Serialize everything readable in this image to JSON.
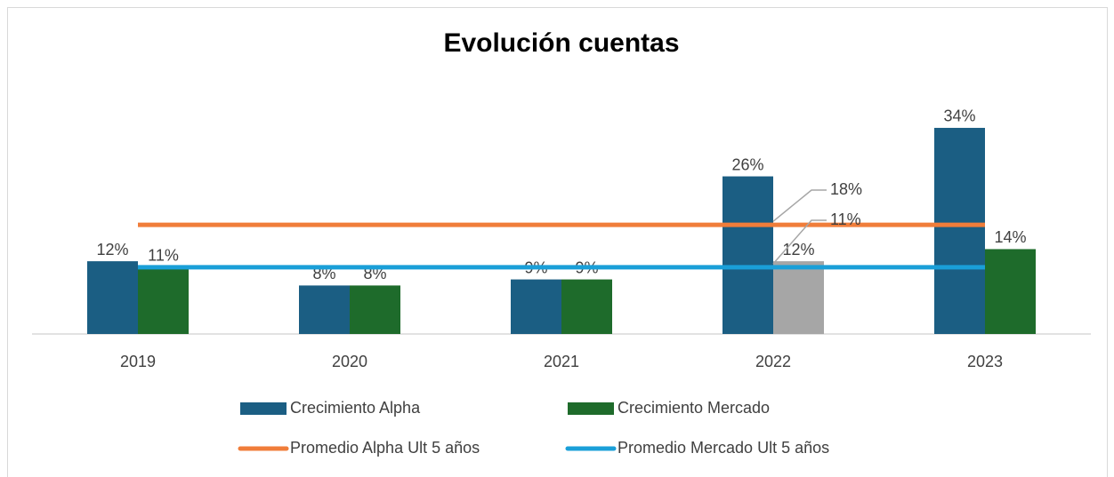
{
  "chart_data": {
    "type": "bar",
    "title": "Evolución cuentas",
    "categories": [
      "2019",
      "2020",
      "2021",
      "2022",
      "2023"
    ],
    "ylim": [
      0,
      40
    ],
    "series": [
      {
        "name": "Crecimiento Alpha",
        "type": "bar",
        "color": "#1b5e83",
        "values": [
          12,
          8,
          9,
          26,
          34
        ],
        "value_labels": [
          "12%",
          "8%",
          "9%",
          "26%",
          "34%"
        ]
      },
      {
        "name": "Crecimiento Mercado",
        "type": "bar",
        "color": "#1e6b2b",
        "colors": [
          "#1e6b2b",
          "#1e6b2b",
          "#1e6b2b",
          "#a6a6a6",
          "#1e6b2b"
        ],
        "values": [
          11,
          8,
          9,
          12,
          14
        ],
        "value_labels": [
          "11%",
          "8%",
          "9%",
          "12%",
          "14%"
        ]
      },
      {
        "name": "Promedio Alpha Ult 5 años",
        "type": "line",
        "color": "#f07d3a",
        "values": [
          18,
          18,
          18,
          18,
          18
        ],
        "value_labels": [
          null,
          null,
          null,
          "18%",
          null
        ]
      },
      {
        "name": "Promedio Mercado Ult 5 años",
        "type": "line",
        "color": "#1a9fd8",
        "values": [
          11,
          11,
          11,
          11,
          11
        ],
        "value_labels": [
          null,
          null,
          null,
          "11%",
          null
        ]
      }
    ]
  }
}
